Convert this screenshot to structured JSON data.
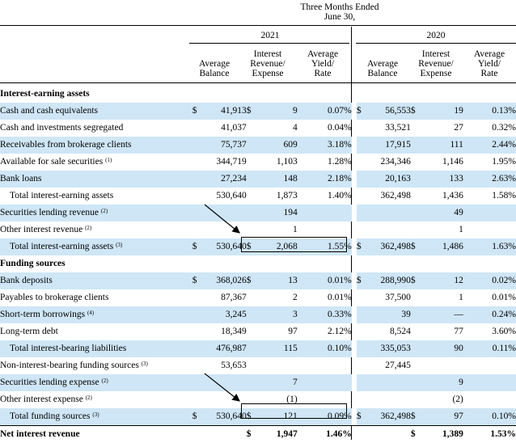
{
  "header": {
    "period_line1": "Three Months Ended",
    "period_line2": "June 30,",
    "year_2021": "2021",
    "year_2020": "2020",
    "col_avg_balance_1": "Average",
    "col_avg_balance_2": "Balance",
    "col_interest_1": "Interest",
    "col_interest_2": "Revenue/",
    "col_interest_3": "Expense",
    "col_yield_1": "Average",
    "col_yield_2": "Yield/",
    "col_yield_3": "Rate"
  },
  "rows": [
    {
      "label": "Interest-earning assets",
      "sup": "",
      "type": "section"
    },
    {
      "label": "Cash and cash equivalents",
      "sup": "",
      "type": "shade",
      "d1": "$",
      "bal1": "41,913",
      "d2": "$",
      "int1": "9",
      "rate1": "0.07%",
      "d3": "$",
      "bal2": "56,553",
      "d4": "$",
      "int2": "19",
      "rate2": "0.13%"
    },
    {
      "label": "Cash and investments segregated",
      "sup": "",
      "type": "plain",
      "d1": "",
      "bal1": "41,037",
      "d2": "",
      "int1": "4",
      "rate1": "0.04%",
      "d3": "",
      "bal2": "33,521",
      "d4": "",
      "int2": "27",
      "rate2": "0.32%"
    },
    {
      "label": "Receivables from brokerage clients",
      "sup": "",
      "type": "shade",
      "d1": "",
      "bal1": "75,737",
      "d2": "",
      "int1": "609",
      "rate1": "3.18%",
      "d3": "",
      "bal2": "17,915",
      "d4": "",
      "int2": "111",
      "rate2": "2.44%"
    },
    {
      "label": "Available for sale securities",
      "sup": "(1)",
      "type": "plain",
      "d1": "",
      "bal1": "344,719",
      "d2": "",
      "int1": "1,103",
      "rate1": "1.28%",
      "d3": "",
      "bal2": "234,346",
      "d4": "",
      "int2": "1,146",
      "rate2": "1.95%"
    },
    {
      "label": "Bank loans",
      "sup": "",
      "type": "shade",
      "d1": "",
      "bal1": "27,234",
      "d2": "",
      "int1": "148",
      "rate1": "2.18%",
      "d3": "",
      "bal2": "20,163",
      "d4": "",
      "int2": "133",
      "rate2": "2.63%"
    },
    {
      "label": "Total interest-earning assets",
      "sup": "",
      "type": "total",
      "d1": "",
      "bal1": "530,640",
      "d2": "",
      "int1": "1,873",
      "rate1": "1.40%",
      "d3": "",
      "bal2": "362,498",
      "d4": "",
      "int2": "1,436",
      "rate2": "1.58%"
    },
    {
      "label": "Securities lending revenue",
      "sup": "(2)",
      "type": "shade",
      "d1": "",
      "bal1": "",
      "d2": "",
      "int1": "194",
      "rate1": "",
      "d3": "",
      "bal2": "",
      "d4": "",
      "int2": "49",
      "rate2": ""
    },
    {
      "label": "Other interest revenue",
      "sup": "(2)",
      "type": "plain",
      "d1": "",
      "bal1": "",
      "d2": "",
      "int1": "1",
      "rate1": "",
      "d3": "",
      "bal2": "",
      "d4": "",
      "int2": "1",
      "rate2": ""
    },
    {
      "label": "Total interest-earning assets",
      "sup": "(3)",
      "type": "shade-total",
      "d1": "$",
      "bal1": "530,640",
      "d2": "$",
      "int1": "2,068",
      "rate1": "1.55%",
      "d3": "$",
      "bal2": "362,498",
      "d4": "$",
      "int2": "1,486",
      "rate2": "1.63%"
    },
    {
      "label": "Funding sources",
      "sup": "",
      "type": "section"
    },
    {
      "label": "Bank deposits",
      "sup": "",
      "type": "shade",
      "d1": "$",
      "bal1": "368,026",
      "d2": "$",
      "int1": "13",
      "rate1": "0.01%",
      "d3": "$",
      "bal2": "288,990",
      "d4": "$",
      "int2": "12",
      "rate2": "0.02%"
    },
    {
      "label": "Payables to brokerage clients",
      "sup": "",
      "type": "plain",
      "d1": "",
      "bal1": "87,367",
      "d2": "",
      "int1": "2",
      "rate1": "0.01%",
      "d3": "",
      "bal2": "37,500",
      "d4": "",
      "int2": "1",
      "rate2": "0.01%"
    },
    {
      "label": "Short-term borrowings",
      "sup": "(4)",
      "type": "shade",
      "d1": "",
      "bal1": "3,245",
      "d2": "",
      "int1": "3",
      "rate1": "0.33%",
      "d3": "",
      "bal2": "39",
      "d4": "",
      "int2": "—",
      "rate2": "0.24%"
    },
    {
      "label": "Long-term debt",
      "sup": "",
      "type": "plain",
      "d1": "",
      "bal1": "18,349",
      "d2": "",
      "int1": "97",
      "rate1": "2.12%",
      "d3": "",
      "bal2": "8,524",
      "d4": "",
      "int2": "77",
      "rate2": "3.60%"
    },
    {
      "label": "Total interest-bearing liabilities",
      "sup": "",
      "type": "shade-total",
      "d1": "",
      "bal1": "476,987",
      "d2": "",
      "int1": "115",
      "rate1": "0.10%",
      "d3": "",
      "bal2": "335,053",
      "d4": "",
      "int2": "90",
      "rate2": "0.11%"
    },
    {
      "label": "Non-interest-bearing funding sources",
      "sup": "(3)",
      "type": "plain",
      "d1": "",
      "bal1": "53,653",
      "d2": "",
      "int1": "",
      "rate1": "",
      "d3": "",
      "bal2": "27,445",
      "d4": "",
      "int2": "",
      "rate2": ""
    },
    {
      "label": "Securities lending expense",
      "sup": "(2)",
      "type": "shade",
      "d1": "",
      "bal1": "",
      "d2": "",
      "int1": "7",
      "rate1": "",
      "d3": "",
      "bal2": "",
      "d4": "",
      "int2": "9",
      "rate2": ""
    },
    {
      "label": "Other interest expense",
      "sup": "(2)",
      "type": "plain",
      "d1": "",
      "bal1": "",
      "d2": "",
      "int1": "(1)",
      "rate1": "",
      "d3": "",
      "bal2": "",
      "d4": "",
      "int2": "(2)",
      "rate2": ""
    },
    {
      "label": "Total funding sources",
      "sup": "(3)",
      "type": "shade-total",
      "d1": "$",
      "bal1": "530,640",
      "d2": "$",
      "int1": "121",
      "rate1": "0.09%",
      "d3": "$",
      "bal2": "362,498",
      "d4": "$",
      "int2": "97",
      "rate2": "0.10%"
    },
    {
      "label": "Net interest revenue",
      "sup": "",
      "type": "net",
      "d1": "",
      "bal1": "",
      "d2": "$",
      "int1": "1,947",
      "rate1": "1.46%",
      "d3": "",
      "bal2": "",
      "d4": "$",
      "int2": "1,389",
      "rate2": "1.53%"
    }
  ]
}
